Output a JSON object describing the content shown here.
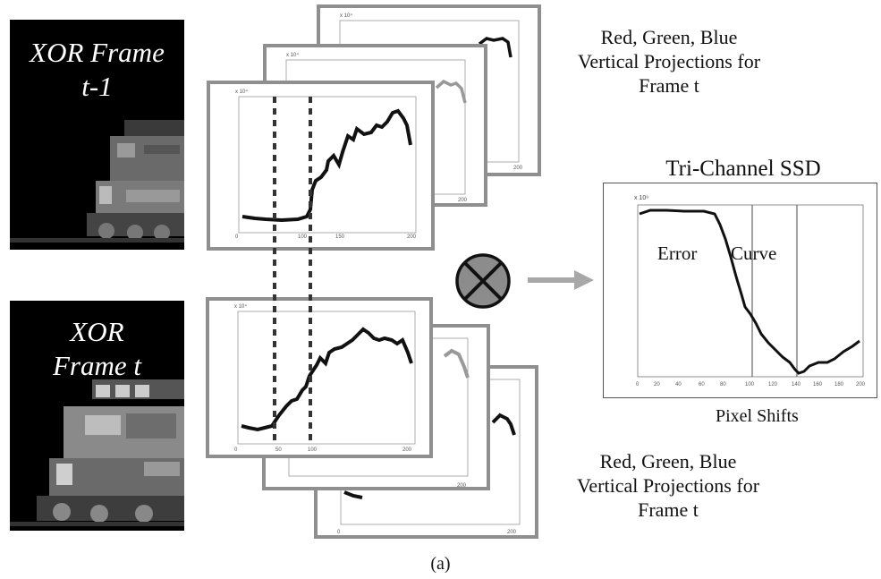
{
  "top_photo": {
    "line1": "XOR Frame",
    "line2": "t-1"
  },
  "bottom_photo": {
    "line1": "XOR",
    "line2": "Frame t"
  },
  "top_caption": {
    "line1": "Red, Green, Blue",
    "line2": "Vertical Projections for",
    "line3": "Frame t"
  },
  "bottom_caption": {
    "line1": "Red, Green, Blue",
    "line2": "Vertical Projections for",
    "line3": "Frame t"
  },
  "ssd_panel": {
    "title": "Tri-Channel SSD",
    "label_error": "Error",
    "label_curve": "Curve",
    "xlabel": "Pixel Shifts"
  },
  "figure_label": "(a)",
  "colors": {
    "frame_border": "#8f8f8f",
    "operator_fill": "#8c8c8c",
    "arrow": "#a8a8a8",
    "curve": "#222222"
  },
  "icons": {
    "operator": "circled-times-icon",
    "arrow": "right-arrow-icon"
  }
}
